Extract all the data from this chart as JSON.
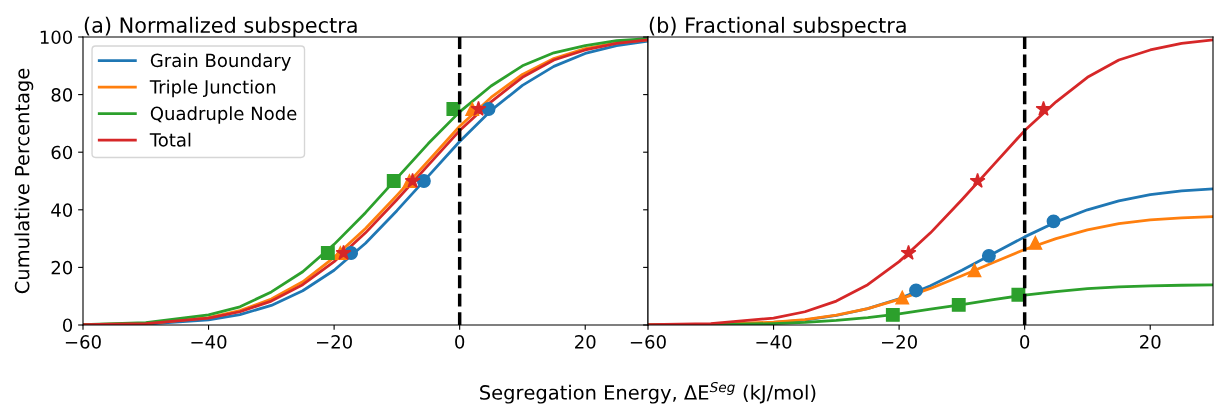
{
  "chart_data": [
    {
      "type": "line",
      "title": "(a) Normalized subspectra",
      "xlabel": "Segregation Energy, ΔE$^{Seg}$ (kJ/mol)",
      "ylabel": "Cumulative Percentage",
      "x": [
        -60,
        -50,
        -40,
        -35,
        -30,
        -25,
        -20,
        -15,
        -10,
        -5,
        0,
        5,
        10,
        15,
        20,
        25,
        30
      ],
      "series": [
        {
          "name": "Grain Boundary",
          "color": "#1f77b4",
          "values": [
            0,
            0.3,
            1.8,
            3.6,
            6.8,
            11.9,
            19,
            28.4,
            39.7,
            51.7,
            63.7,
            74.5,
            83.2,
            89.8,
            94.3,
            97,
            98.6
          ]
        },
        {
          "name": "Triple Junction",
          "color": "#ff7f0e",
          "values": [
            0.1,
            0.5,
            2.6,
            5,
            9,
            15,
            23.5,
            33.5,
            45,
            57,
            69,
            79,
            87,
            92.5,
            96,
            98,
            99
          ]
        },
        {
          "name": "Quadruple Node",
          "color": "#2ca02c",
          "values": [
            0.1,
            0.8,
            3.5,
            6.3,
            11.5,
            18.5,
            28,
            39,
            51,
            63,
            74,
            83,
            90,
            94.5,
            97,
            98.7,
            99.4
          ]
        },
        {
          "name": "Total",
          "color": "#d62728",
          "values": [
            0.1,
            0.5,
            2.4,
            4.6,
            8.3,
            14,
            22,
            32,
            43.5,
            55.5,
            67.5,
            77.5,
            86,
            92,
            95.5,
            97.8,
            99
          ]
        },
        {
          "type": "scatter",
          "marker": "circle",
          "color": "#1f77b4",
          "x": [
            -17.3,
            -5.7,
            4.6
          ],
          "values": [
            25,
            50,
            75
          ]
        },
        {
          "type": "scatter",
          "marker": "triangle",
          "color": "#ff7f0e",
          "x": [
            -19,
            -8,
            2
          ],
          "values": [
            25,
            50,
            75
          ]
        },
        {
          "type": "scatter",
          "marker": "square",
          "color": "#2ca02c",
          "x": [
            -21,
            -10.5,
            -1
          ],
          "values": [
            25,
            50,
            75
          ]
        },
        {
          "type": "scatter",
          "marker": "star",
          "color": "#d62728",
          "x": [
            -18.5,
            -7.5,
            3
          ],
          "values": [
            25,
            50,
            75
          ]
        }
      ],
      "xlim": [
        -60,
        30
      ],
      "xticks": [
        {
          "value": -60,
          "label": "−60"
        },
        {
          "value": -40,
          "label": "−40"
        },
        {
          "value": -20,
          "label": "−20"
        },
        0,
        20
      ],
      "ylim": [
        0,
        100
      ],
      "yticks": [
        0,
        20,
        40,
        60,
        80,
        100
      ],
      "ref_lines": [
        {
          "axis": "x",
          "value": 0,
          "color": "#000000",
          "line_style": "dashed"
        }
      ],
      "legend": "top left",
      "grid": false
    },
    {
      "type": "line",
      "title": "(b) Fractional subspectra",
      "x": [
        -60,
        -50,
        -40,
        -35,
        -30,
        -25,
        -20,
        -15,
        -10,
        -5,
        0,
        5,
        10,
        15,
        20,
        25,
        30
      ],
      "series": [
        {
          "color": "#1f77b4",
          "values": [
            null,
            null,
            0.9,
            1.7,
            3.3,
            5.7,
            9.1,
            13.6,
            19,
            24.8,
            30.6,
            35.8,
            40,
            43.1,
            45.3,
            46.6,
            47.3
          ]
        },
        {
          "color": "#ff7f0e",
          "values": [
            0,
            0.2,
            1,
            1.9,
            3.4,
            5.7,
            8.9,
            12.7,
            17.1,
            21.7,
            26.2,
            30,
            33,
            35.2,
            36.5,
            37.2,
            37.6
          ]
        },
        {
          "color": "#2ca02c",
          "values": [
            0,
            0.1,
            0.5,
            0.9,
            1.6,
            2.6,
            3.9,
            5.5,
            7.1,
            8.8,
            10.4,
            11.6,
            12.6,
            13.2,
            13.6,
            13.8,
            13.9
          ]
        },
        {
          "color": "#d62728",
          "values": [
            0.1,
            0.5,
            2.4,
            4.6,
            8.3,
            14,
            22,
            32,
            43.5,
            55.5,
            67.5,
            77.5,
            86,
            92,
            95.5,
            97.8,
            99
          ]
        },
        {
          "type": "scatter",
          "marker": "circle",
          "color": "#1f77b4",
          "x": [
            -17.3,
            -5.7,
            4.6
          ],
          "values": [
            12,
            24,
            36
          ]
        },
        {
          "type": "scatter",
          "marker": "triangle",
          "color": "#ff7f0e",
          "x": [
            -19.5,
            -8,
            1.7
          ],
          "values": [
            9.5,
            19,
            28.5
          ]
        },
        {
          "type": "scatter",
          "marker": "square",
          "color": "#2ca02c",
          "x": [
            -21,
            -10.5,
            -1
          ],
          "values": [
            3.5,
            7,
            10.5
          ]
        },
        {
          "type": "scatter",
          "marker": "star",
          "color": "#d62728",
          "x": [
            -18.5,
            -7.5,
            3
          ],
          "values": [
            25,
            50,
            75
          ]
        }
      ],
      "xlim": [
        -60,
        30
      ],
      "xticks": [
        {
          "value": -60,
          "label": "−60"
        },
        {
          "value": -40,
          "label": "−40"
        },
        {
          "value": -20,
          "label": "−20"
        },
        0,
        20
      ],
      "ylim": [
        0,
        100
      ],
      "yticks": [
        0,
        20,
        40,
        60,
        80,
        100
      ],
      "tick_labels": "x",
      "ref_lines": [
        {
          "axis": "x",
          "value": 0,
          "color": "#000000",
          "line_style": "dashed"
        }
      ],
      "grid": false
    }
  ]
}
